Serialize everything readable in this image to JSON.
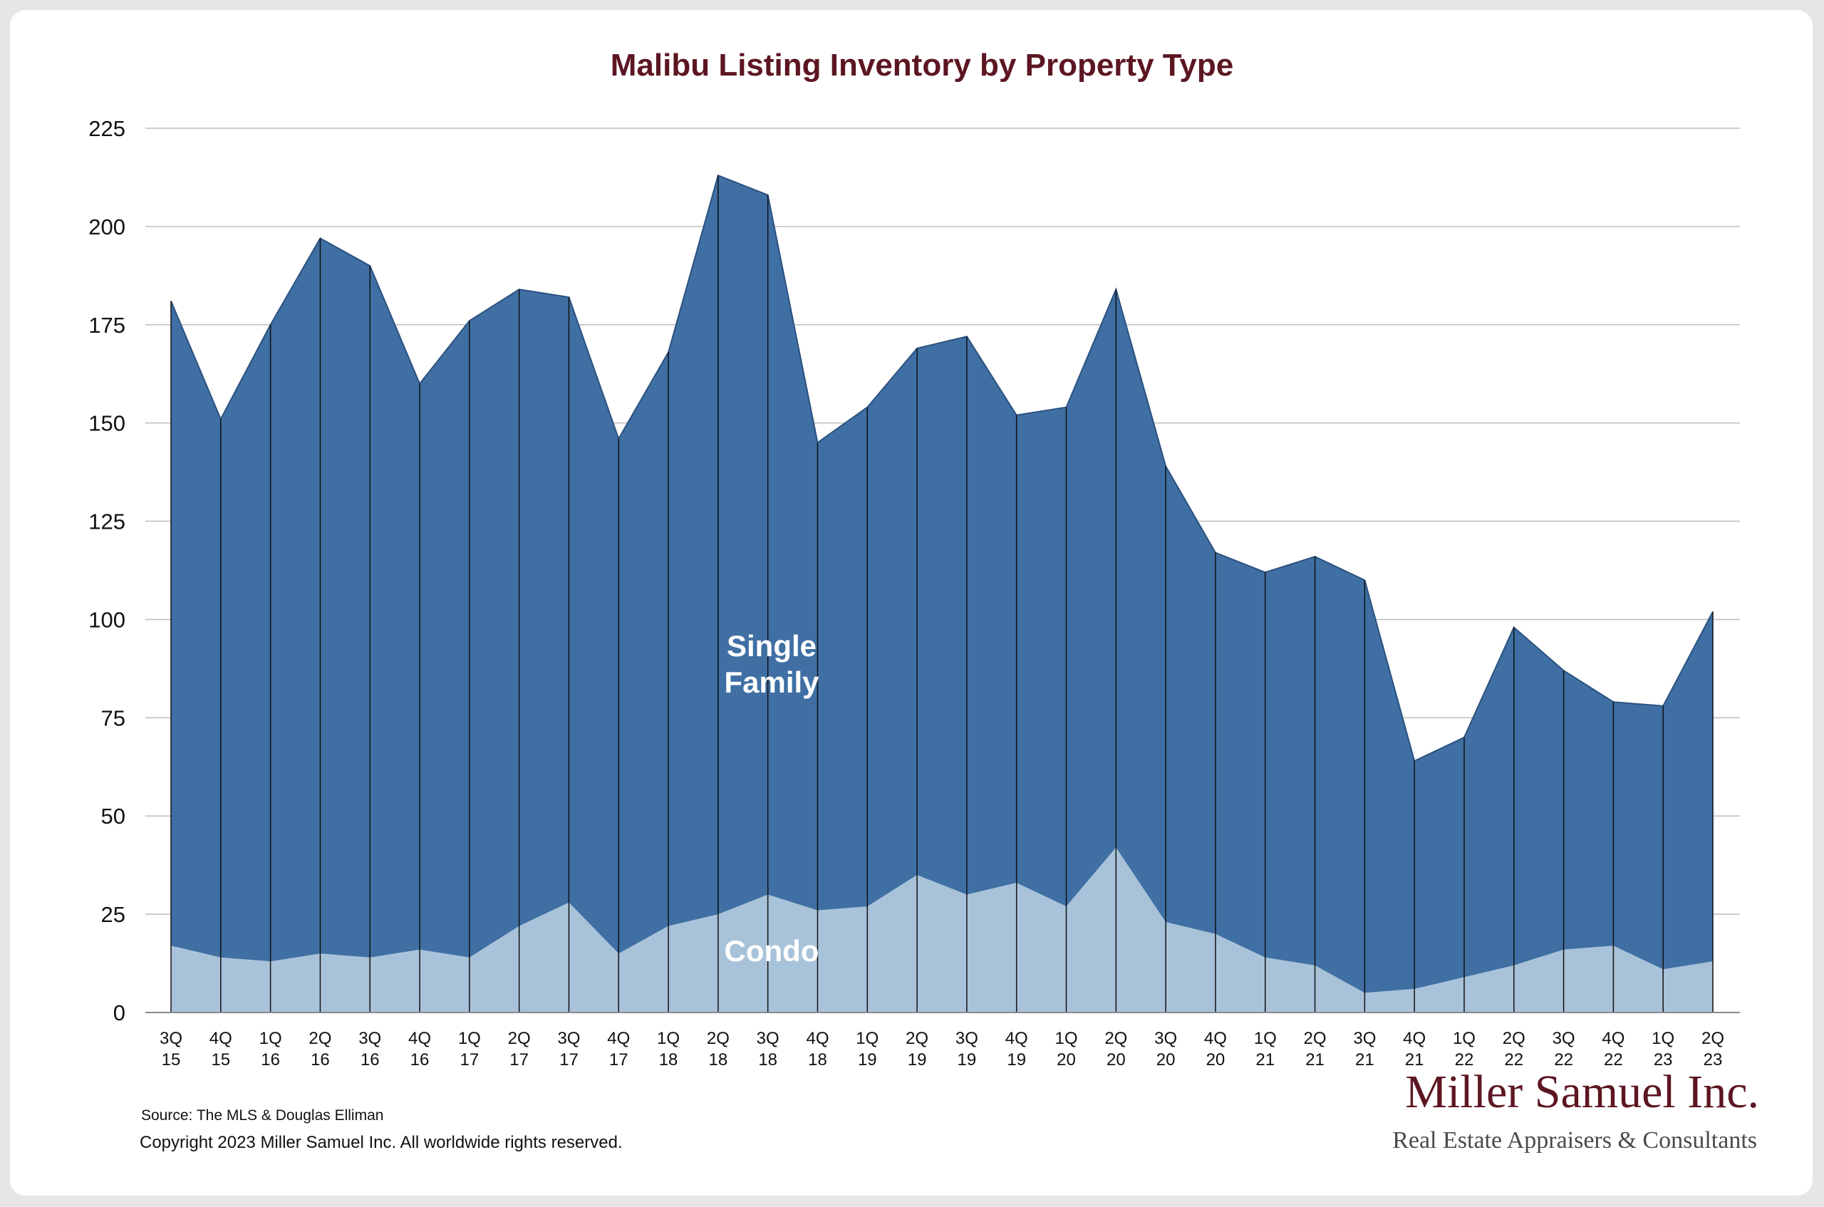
{
  "chart_data": {
    "type": "area",
    "title": "Malibu Listing Inventory by Property Type",
    "xlabel": "",
    "ylabel": "",
    "ylim": [
      0,
      225
    ],
    "yticks": [
      "0",
      "25",
      "50",
      "75",
      "100",
      "125",
      "150",
      "175",
      "200",
      "225"
    ],
    "grid": true,
    "stacked": true,
    "categories": [
      "3Q 15",
      "4Q 15",
      "1Q 16",
      "2Q 16",
      "3Q 16",
      "4Q 16",
      "1Q 17",
      "2Q 17",
      "3Q 17",
      "4Q 17",
      "1Q 18",
      "2Q 18",
      "3Q 18",
      "4Q 18",
      "1Q 19",
      "2Q 19",
      "3Q 19",
      "4Q 19",
      "1Q 20",
      "2Q 20",
      "3Q 20",
      "4Q 20",
      "1Q 21",
      "2Q 21",
      "3Q 21",
      "4Q 21",
      "1Q 22",
      "2Q 22",
      "3Q 22",
      "4Q 22",
      "1Q 23",
      "2Q 23"
    ],
    "series": [
      {
        "name": "Condo",
        "color": "#a8c3d9",
        "values": [
          17,
          14,
          13,
          15,
          14,
          16,
          14,
          22,
          28,
          15,
          22,
          25,
          30,
          26,
          27,
          35,
          30,
          33,
          27,
          42,
          23,
          20,
          14,
          12,
          5,
          6,
          9,
          12,
          16,
          17,
          11,
          13
        ]
      },
      {
        "name": "Single Family",
        "color": "#3f6fa3",
        "values": [
          164,
          137,
          162,
          182,
          176,
          144,
          162,
          162,
          154,
          131,
          146,
          188,
          178,
          119,
          127,
          134,
          142,
          119,
          127,
          142,
          116,
          97,
          98,
          104,
          105,
          58,
          61,
          86,
          71,
          62,
          67,
          89
        ]
      }
    ],
    "totals": [
      181,
      151,
      175,
      197,
      190,
      160,
      176,
      184,
      182,
      146,
      168,
      213,
      208,
      145,
      154,
      169,
      172,
      152,
      154,
      184,
      139,
      117,
      112,
      116,
      110,
      64,
      70,
      98,
      87,
      79,
      78,
      102
    ],
    "series_labels": {
      "single_family": [
        "Single",
        "Family"
      ],
      "condo": "Condo"
    }
  },
  "footer": {
    "source": "Source: The MLS & Douglas Elliman",
    "copyright": "Copyright 2023 Miller Samuel Inc.  All worldwide rights reserved."
  },
  "logo": {
    "name": "Miller Samuel Inc.",
    "tagline": "Real Estate Appraisers & Consultants"
  },
  "colors": {
    "title": "#5c1622",
    "single_family": "#3f6fa3",
    "condo": "#a8c3d9",
    "grid": "#bdbdbd",
    "background": "#ffffff"
  }
}
